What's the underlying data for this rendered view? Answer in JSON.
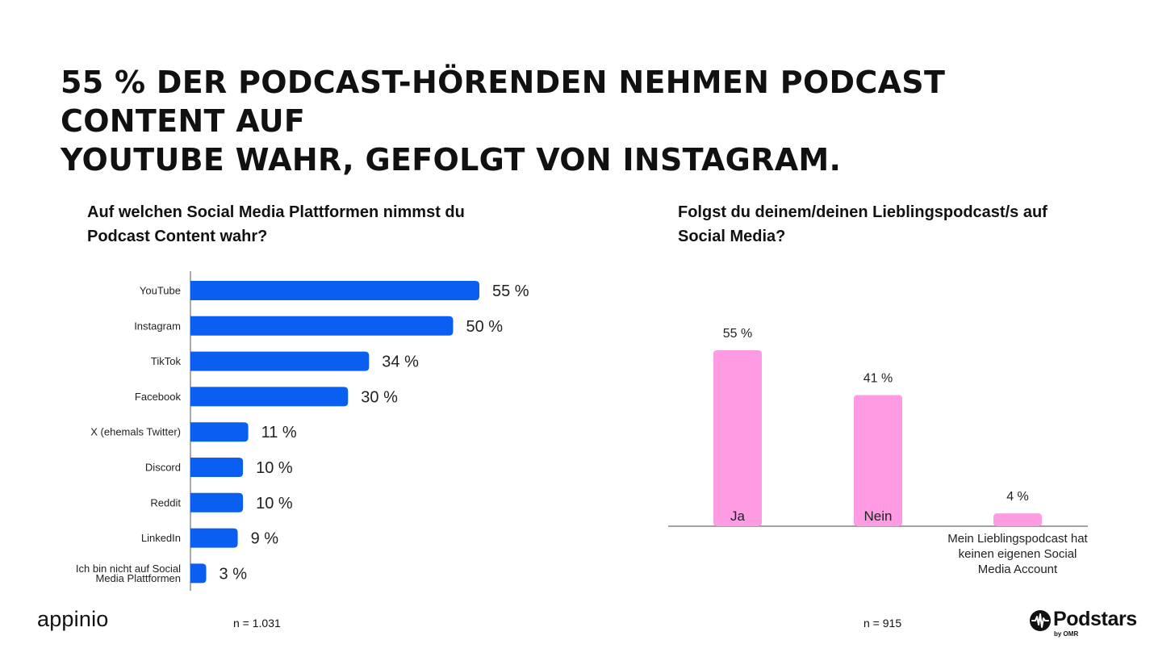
{
  "headline": {
    "line1": "55 % DER PODCAST-HÖRENDEN NEHMEN PODCAST CONTENT AUF",
    "line2": "YOUTUBE WAHR, GEFOLGT VON INSTAGRAM."
  },
  "left": {
    "question_line1": "Auf welchen Social Media Plattformen nimmst du",
    "question_line2": "Podcast Content wahr?",
    "n": "n = 1.031"
  },
  "right": {
    "question_line1": "Folgst du deinem/deinen Lieblingspodcast/s auf",
    "question_line2": "Social Media?",
    "n": "n = 915"
  },
  "logos": {
    "appinio": "appinio",
    "podstars": "Podstars",
    "podstars_sub": "by OMR"
  },
  "chart_data": [
    {
      "type": "bar",
      "orientation": "horizontal",
      "categories": [
        [
          "YouTube"
        ],
        [
          "Instagram"
        ],
        [
          "TikTok"
        ],
        [
          "Facebook"
        ],
        [
          "X (ehemals Twitter)"
        ],
        [
          "Discord"
        ],
        [
          "Reddit"
        ],
        [
          "LinkedIn"
        ],
        [
          "Ich bin nicht auf Social",
          "Media Plattformen"
        ]
      ],
      "values": [
        55,
        50,
        34,
        30,
        11,
        10,
        10,
        9,
        3
      ],
      "value_labels": [
        "55 %",
        "50 %",
        "34 %",
        "30 %",
        "11 %",
        "10 %",
        "10 %",
        "9 %",
        "3 %"
      ],
      "unit": "%",
      "xlim": [
        0,
        55
      ],
      "color": "#0a5ff0",
      "grid": false
    },
    {
      "type": "bar",
      "orientation": "vertical",
      "categories": [
        "Ja",
        "Nein",
        "Mein Lieblingspodcast hat keinen eigenen Social Media Account"
      ],
      "category_lines": [
        [],
        [],
        [
          "Mein Lieblingspodcast hat",
          "keinen eigenen Social",
          "Media Account"
        ]
      ],
      "inside_labels": [
        "Ja",
        "Nein",
        ""
      ],
      "values": [
        55,
        41,
        4
      ],
      "value_labels": [
        "55 %",
        "41 %",
        "4 %"
      ],
      "unit": "%",
      "ylim": [
        0,
        55
      ],
      "color": "#ff9be3",
      "grid": false
    }
  ]
}
